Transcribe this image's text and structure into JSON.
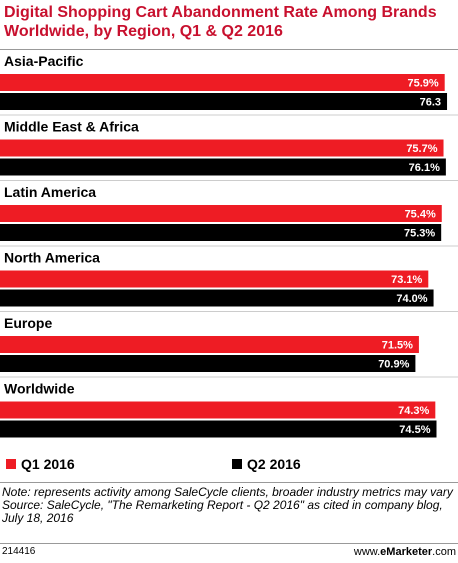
{
  "title": "Digital Shopping Cart Abandonment Rate Among Brands Worldwide, by Region, Q1 & Q2 2016",
  "colors": {
    "q1": "#ee1c24",
    "q2": "#000000",
    "q1_label": "#ffffff",
    "q2_label": "#ffffff"
  },
  "chart_data": {
    "type": "bar",
    "orientation": "horizontal",
    "categories": [
      "Asia-Pacific",
      "Middle East & Africa",
      "Latin America",
      "North America",
      "Europe",
      "Worldwide"
    ],
    "series": [
      {
        "name": "Q1 2016",
        "values": [
          75.9,
          75.7,
          75.4,
          73.1,
          71.5,
          74.3
        ],
        "labels": [
          "75.9%",
          "75.7%",
          "75.4%",
          "73.1%",
          "71.5%",
          "74.3%"
        ]
      },
      {
        "name": "Q2 2016",
        "values": [
          76.3,
          76.1,
          75.3,
          74.0,
          70.9,
          74.5
        ],
        "labels": [
          "76.3",
          "76.1%",
          "75.3%",
          "74.0%",
          "70.9%",
          "74.5%"
        ]
      }
    ],
    "unit": "%",
    "legend_position": "bottom",
    "grid": false
  },
  "legend": {
    "q1": "Q1 2016",
    "q2": "Q2 2016"
  },
  "note": "Note: represents activity among SaleCycle clients, broader industry metrics may vary",
  "source": "Source: SaleCycle, \"The Remarketing Report - Q2 2016\" as cited in company blog, July 18, 2016",
  "footer": {
    "chart_id": "214416",
    "brand_prefix": "www.",
    "brand_name": "eMarketer",
    "brand_suffix": ".com"
  }
}
